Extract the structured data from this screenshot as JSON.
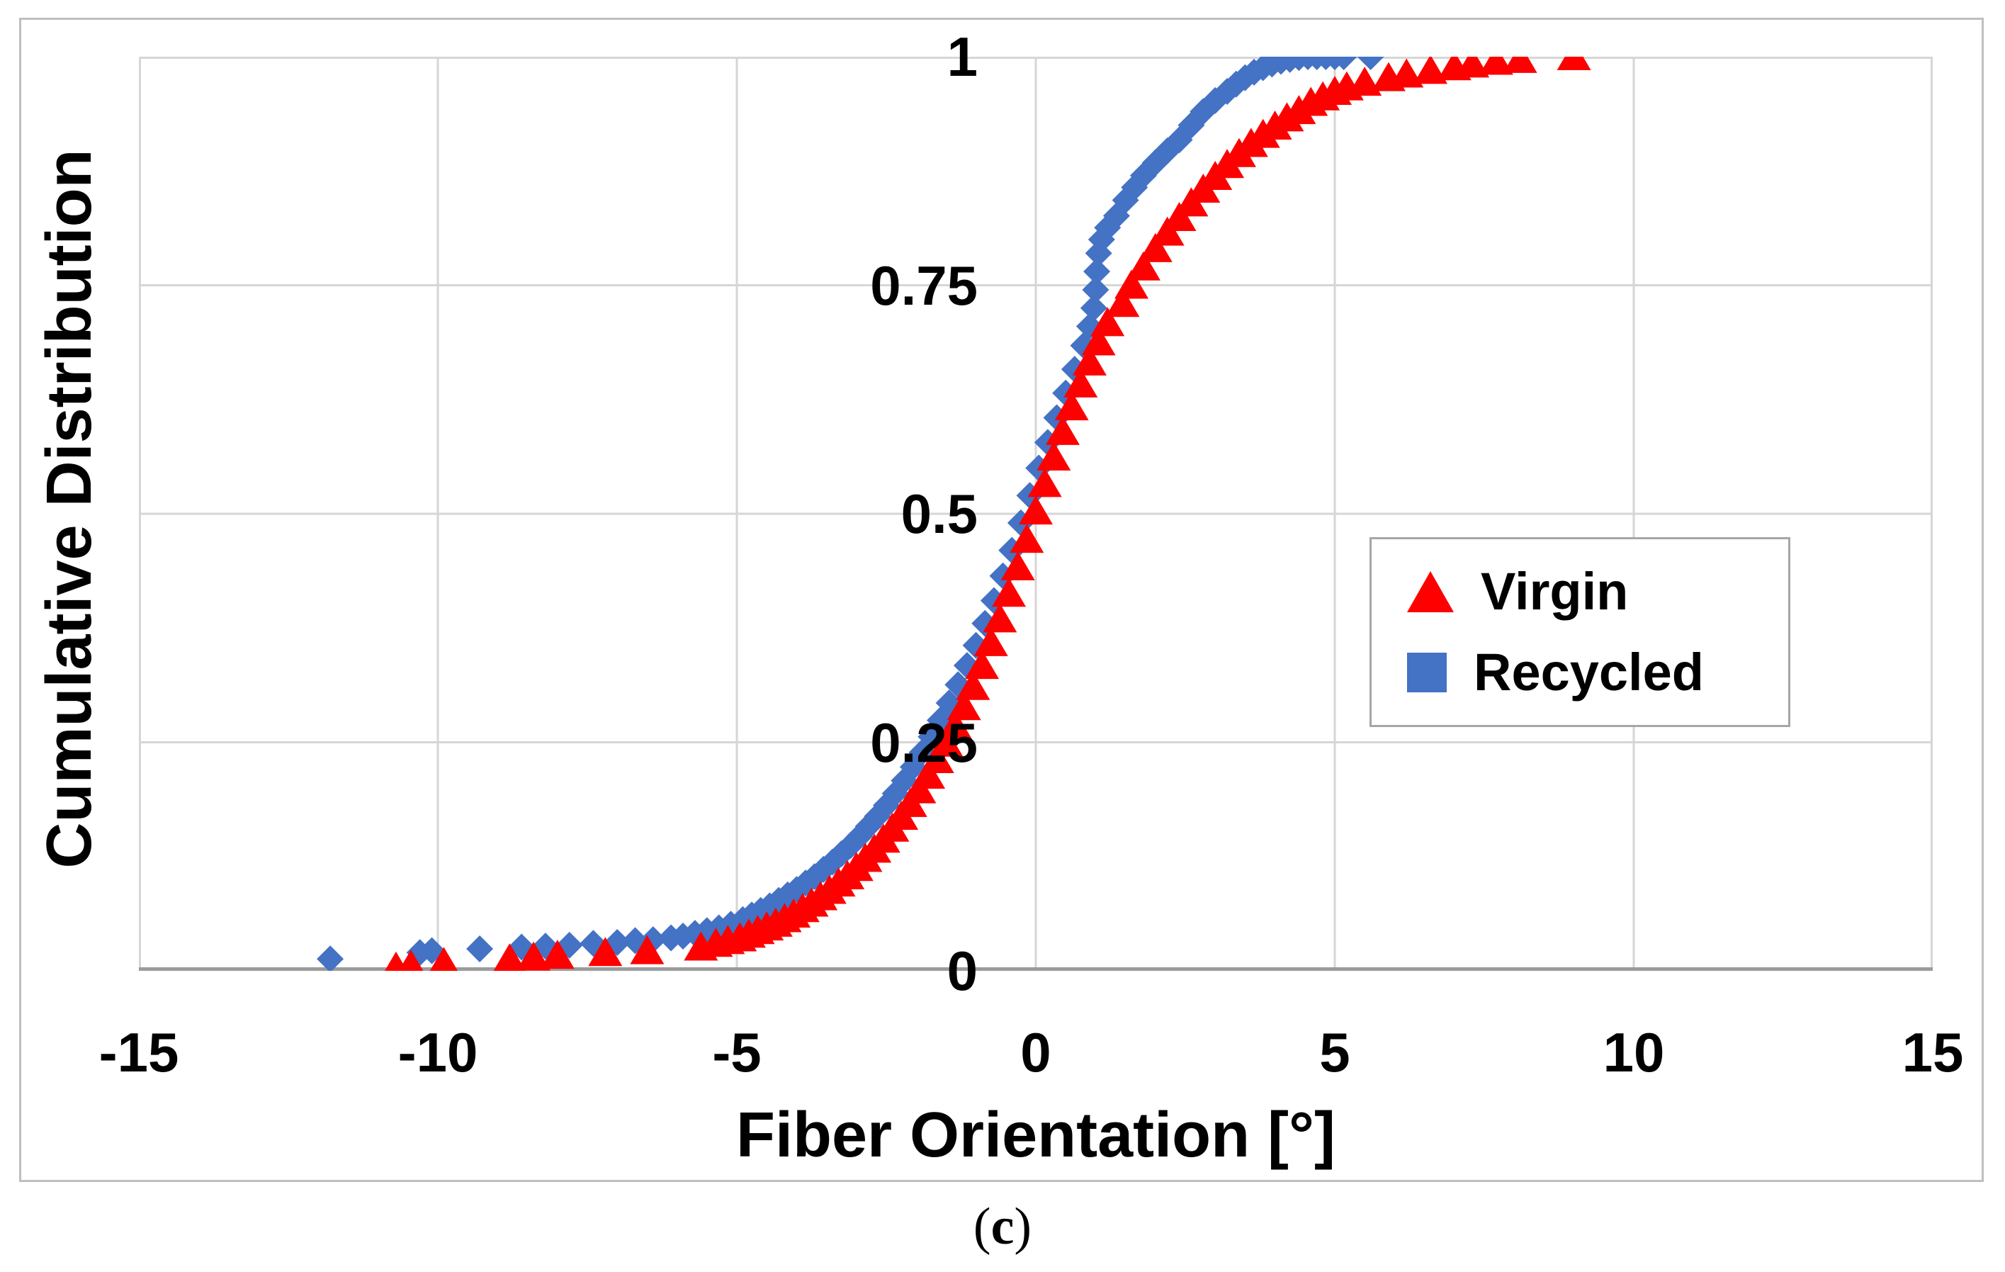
{
  "figure": {
    "caption_open": "(",
    "caption_letter": "c",
    "caption_close": ")"
  },
  "chart_data": {
    "type": "scatter",
    "title": "",
    "xlabel": "Fiber Orientation [°]",
    "ylabel": "Cumulative Distribution",
    "xlim": [
      -15,
      15
    ],
    "ylim": [
      0,
      1
    ],
    "x_ticks": [
      -15,
      -10,
      -5,
      0,
      5,
      10,
      15
    ],
    "x_tick_labels": [
      "-15",
      "-10",
      "-5",
      "0",
      "5",
      "10",
      "15"
    ],
    "y_ticks": [
      0,
      0.25,
      0.5,
      0.75,
      1
    ],
    "y_tick_labels": [
      "0",
      "0.25",
      "0.5",
      "0.75",
      "1"
    ],
    "grid": true,
    "gridline_color": "#D6D6D6",
    "axis_line_color": "#9B9B9B",
    "legend": {
      "position": "center-right",
      "border": true
    },
    "series": [
      {
        "name": "Virgin",
        "marker": "triangle",
        "legend_marker": "triangle",
        "color": "#FF0000",
        "points": [
          [
            -10.7,
            0.004
          ],
          [
            -10.45,
            0.006
          ],
          [
            -9.9,
            0.009
          ],
          [
            -8.8,
            0.013
          ],
          [
            -8.4,
            0.015
          ],
          [
            -8.0,
            0.017
          ],
          [
            -7.2,
            0.02
          ],
          [
            -6.5,
            0.022
          ],
          [
            -5.6,
            0.026
          ],
          [
            -5.35,
            0.03
          ],
          [
            -5.15,
            0.033
          ],
          [
            -4.95,
            0.036
          ],
          [
            -4.8,
            0.04
          ],
          [
            -4.65,
            0.044
          ],
          [
            -4.5,
            0.048
          ],
          [
            -4.35,
            0.052
          ],
          [
            -4.2,
            0.057
          ],
          [
            -4.05,
            0.062
          ],
          [
            -3.9,
            0.068
          ],
          [
            -3.75,
            0.074
          ],
          [
            -3.6,
            0.081
          ],
          [
            -3.45,
            0.088
          ],
          [
            -3.3,
            0.096
          ],
          [
            -3.15,
            0.104
          ],
          [
            -3.0,
            0.113
          ],
          [
            -2.85,
            0.123
          ],
          [
            -2.7,
            0.133
          ],
          [
            -2.55,
            0.144
          ],
          [
            -2.4,
            0.156
          ],
          [
            -2.25,
            0.169
          ],
          [
            -2.1,
            0.183
          ],
          [
            -1.95,
            0.198
          ],
          [
            -1.8,
            0.214
          ],
          [
            -1.65,
            0.231
          ],
          [
            -1.5,
            0.249
          ],
          [
            -1.35,
            0.268
          ],
          [
            -1.2,
            0.289
          ],
          [
            -1.05,
            0.311
          ],
          [
            -0.9,
            0.334
          ],
          [
            -0.75,
            0.359
          ],
          [
            -0.6,
            0.385
          ],
          [
            -0.45,
            0.413
          ],
          [
            -0.3,
            0.442
          ],
          [
            -0.15,
            0.472
          ],
          [
            0.0,
            0.503
          ],
          [
            0.15,
            0.533
          ],
          [
            0.3,
            0.562
          ],
          [
            0.45,
            0.59
          ],
          [
            0.6,
            0.617
          ],
          [
            0.75,
            0.642
          ],
          [
            0.9,
            0.666
          ],
          [
            1.05,
            0.688
          ],
          [
            1.2,
            0.709
          ],
          [
            1.45,
            0.73
          ],
          [
            1.6,
            0.75
          ],
          [
            1.8,
            0.77
          ],
          [
            2.0,
            0.79
          ],
          [
            2.2,
            0.808
          ],
          [
            2.4,
            0.824
          ],
          [
            2.6,
            0.84
          ],
          [
            2.8,
            0.855
          ],
          [
            3.0,
            0.869
          ],
          [
            3.2,
            0.882
          ],
          [
            3.4,
            0.894
          ],
          [
            3.6,
            0.905
          ],
          [
            3.8,
            0.915
          ],
          [
            4.0,
            0.924
          ],
          [
            4.2,
            0.933
          ],
          [
            4.4,
            0.941
          ],
          [
            4.6,
            0.95
          ],
          [
            4.8,
            0.956
          ],
          [
            5.0,
            0.962
          ],
          [
            5.2,
            0.967
          ],
          [
            5.5,
            0.972
          ],
          [
            5.9,
            0.977
          ],
          [
            6.2,
            0.981
          ],
          [
            6.6,
            0.985
          ],
          [
            7.0,
            0.989
          ],
          [
            7.3,
            0.992
          ],
          [
            7.7,
            0.995
          ],
          [
            8.1,
            0.997
          ],
          [
            9.0,
            1.0
          ]
        ]
      },
      {
        "name": "Recycled",
        "marker": "diamond",
        "legend_marker": "square",
        "color": "#4472C4",
        "points": [
          [
            -11.8,
            0.013
          ],
          [
            -10.3,
            0.02
          ],
          [
            -10.1,
            0.022
          ],
          [
            -9.3,
            0.024
          ],
          [
            -8.6,
            0.026
          ],
          [
            -8.2,
            0.027
          ],
          [
            -7.8,
            0.028
          ],
          [
            -7.4,
            0.03
          ],
          [
            -7.0,
            0.031
          ],
          [
            -6.7,
            0.033
          ],
          [
            -6.4,
            0.034
          ],
          [
            -6.1,
            0.036
          ],
          [
            -5.9,
            0.038
          ],
          [
            -5.7,
            0.041
          ],
          [
            -5.5,
            0.044
          ],
          [
            -5.3,
            0.047
          ],
          [
            -5.1,
            0.051
          ],
          [
            -4.9,
            0.056
          ],
          [
            -4.75,
            0.061
          ],
          [
            -4.6,
            0.066
          ],
          [
            -4.45,
            0.071
          ],
          [
            -4.3,
            0.077
          ],
          [
            -4.15,
            0.083
          ],
          [
            -4.0,
            0.089
          ],
          [
            -3.85,
            0.096
          ],
          [
            -3.7,
            0.103
          ],
          [
            -3.55,
            0.111
          ],
          [
            -3.4,
            0.119
          ],
          [
            -3.25,
            0.128
          ],
          [
            -3.1,
            0.137
          ],
          [
            -2.95,
            0.147
          ],
          [
            -2.8,
            0.158
          ],
          [
            -2.65,
            0.169
          ],
          [
            -2.5,
            0.181
          ],
          [
            -2.35,
            0.194
          ],
          [
            -2.2,
            0.208
          ],
          [
            -2.05,
            0.223
          ],
          [
            -1.9,
            0.239
          ],
          [
            -1.75,
            0.256
          ],
          [
            -1.6,
            0.274
          ],
          [
            -1.45,
            0.293
          ],
          [
            -1.3,
            0.313
          ],
          [
            -1.15,
            0.334
          ],
          [
            -1.0,
            0.356
          ],
          [
            -0.85,
            0.38
          ],
          [
            -0.7,
            0.405
          ],
          [
            -0.55,
            0.432
          ],
          [
            -0.4,
            0.46
          ],
          [
            -0.25,
            0.49
          ],
          [
            -0.1,
            0.52
          ],
          [
            0.05,
            0.55
          ],
          [
            0.2,
            0.578
          ],
          [
            0.35,
            0.605
          ],
          [
            0.5,
            0.632
          ],
          [
            0.65,
            0.658
          ],
          [
            0.8,
            0.684
          ],
          [
            0.9,
            0.705
          ],
          [
            0.97,
            0.725
          ],
          [
            1.0,
            0.745
          ],
          [
            1.02,
            0.765
          ],
          [
            1.05,
            0.785
          ],
          [
            1.1,
            0.8
          ],
          [
            1.2,
            0.813
          ],
          [
            1.35,
            0.826
          ],
          [
            1.5,
            0.843
          ],
          [
            1.65,
            0.857
          ],
          [
            1.8,
            0.87
          ],
          [
            2.0,
            0.884
          ],
          [
            2.2,
            0.897
          ],
          [
            2.4,
            0.909
          ],
          [
            2.6,
            0.925
          ],
          [
            2.8,
            0.94
          ],
          [
            3.0,
            0.952
          ],
          [
            3.2,
            0.962
          ],
          [
            3.35,
            0.97
          ],
          [
            3.5,
            0.977
          ],
          [
            3.65,
            0.983
          ],
          [
            3.8,
            0.988
          ],
          [
            3.95,
            0.992
          ],
          [
            4.1,
            0.995
          ],
          [
            4.25,
            0.997
          ],
          [
            4.4,
            0.999
          ],
          [
            4.55,
            1.0
          ],
          [
            4.7,
            1.0
          ],
          [
            4.85,
            1.0
          ],
          [
            5.0,
            1.0
          ],
          [
            5.15,
            1.0
          ],
          [
            5.6,
            1.0
          ]
        ]
      }
    ]
  }
}
